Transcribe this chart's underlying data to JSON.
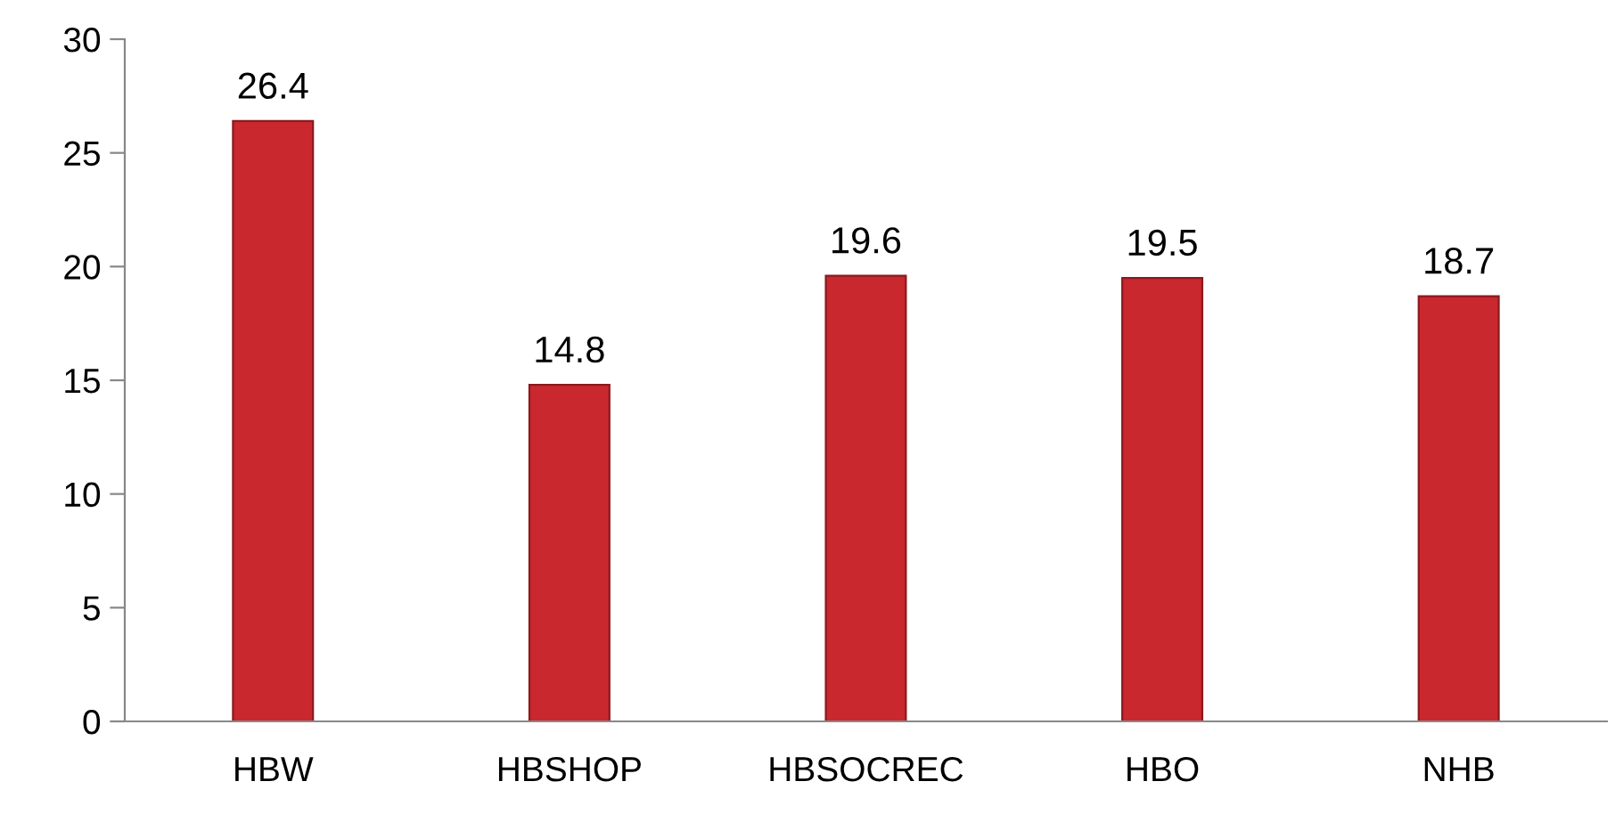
{
  "chart_data": {
    "type": "bar",
    "categories": [
      "HBW",
      "HBSHOP",
      "HBSOCREC",
      "HBO",
      "NHB"
    ],
    "values": [
      26.4,
      14.8,
      19.6,
      19.5,
      18.7
    ],
    "color": "#c9282e",
    "ylim": [
      0,
      30
    ],
    "yticks": [
      0,
      5,
      10,
      15,
      20,
      25,
      30
    ],
    "data_labels": true,
    "grid": false,
    "legend": false
  }
}
